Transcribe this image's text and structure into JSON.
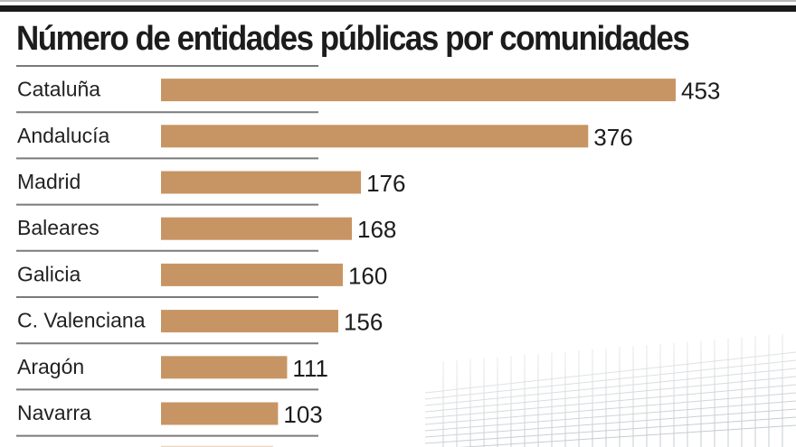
{
  "chart_data": {
    "type": "bar",
    "orientation": "horizontal",
    "title": "Número de entidades públicas por comunidades",
    "xlabel": "",
    "ylabel": "",
    "categories": [
      "Cataluña",
      "Andalucía",
      "Madrid",
      "Baleares",
      "Galicia",
      "C. Valenciana",
      "Aragón",
      "Navarra"
    ],
    "values": [
      453,
      376,
      176,
      168,
      160,
      156,
      111,
      103
    ],
    "value_labels": [
      "453",
      "376",
      "176",
      "168",
      "160",
      "156",
      "111",
      "103"
    ],
    "xlim": [
      0,
      453
    ],
    "grid": false,
    "legend": "none",
    "bar_color": "#c79563",
    "truncated_next_bar": true
  }
}
